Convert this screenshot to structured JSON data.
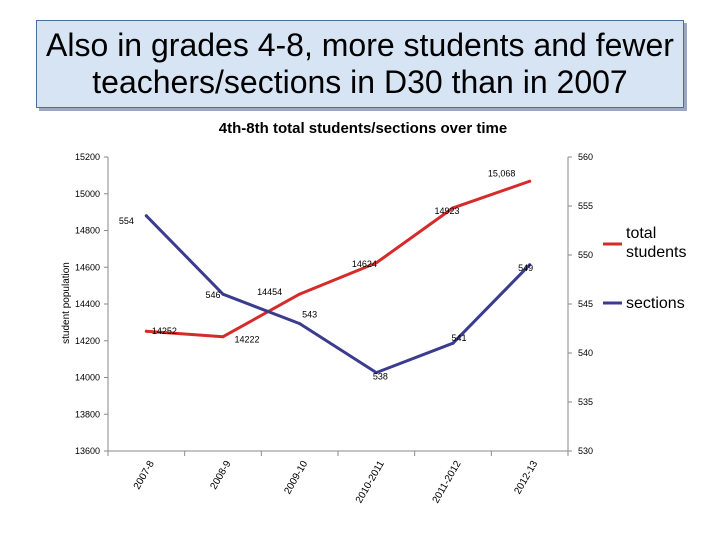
{
  "slide": {
    "title": "Also in grades 4-8, more students and fewer teachers/sections in D30 than in 2007"
  },
  "chart_data": {
    "type": "line",
    "title": "4th-8th total students/sections over time",
    "ylabel": "student population",
    "categories": [
      "2007-8",
      "2008-9",
      "2009-10",
      "2010-2011",
      "2011-2012",
      "2012-13"
    ],
    "y_ticks": [
      13600,
      13800,
      14000,
      14200,
      14400,
      14600,
      14800,
      15000,
      15200
    ],
    "y2_ticks": [
      530,
      535,
      540,
      545,
      550,
      555,
      560
    ],
    "ylim": [
      13600,
      15200
    ],
    "y2lim": [
      530,
      560
    ],
    "grid": false,
    "legend_position": "right",
    "series": [
      {
        "name": "total students",
        "axis": "left",
        "color": "#d62b2b",
        "values": [
          14252,
          14222,
          14454,
          14624,
          14923,
          15068
        ],
        "labels": [
          "14252",
          "14222",
          "14454",
          "14624",
          "14923",
          "15,068"
        ]
      },
      {
        "name": "sections",
        "axis": "right",
        "color": "#3b3b8f",
        "values": [
          554,
          546,
          543,
          538,
          541,
          549
        ],
        "labels": [
          "554",
          "546",
          "543",
          "538",
          "541",
          "549"
        ]
      }
    ]
  }
}
